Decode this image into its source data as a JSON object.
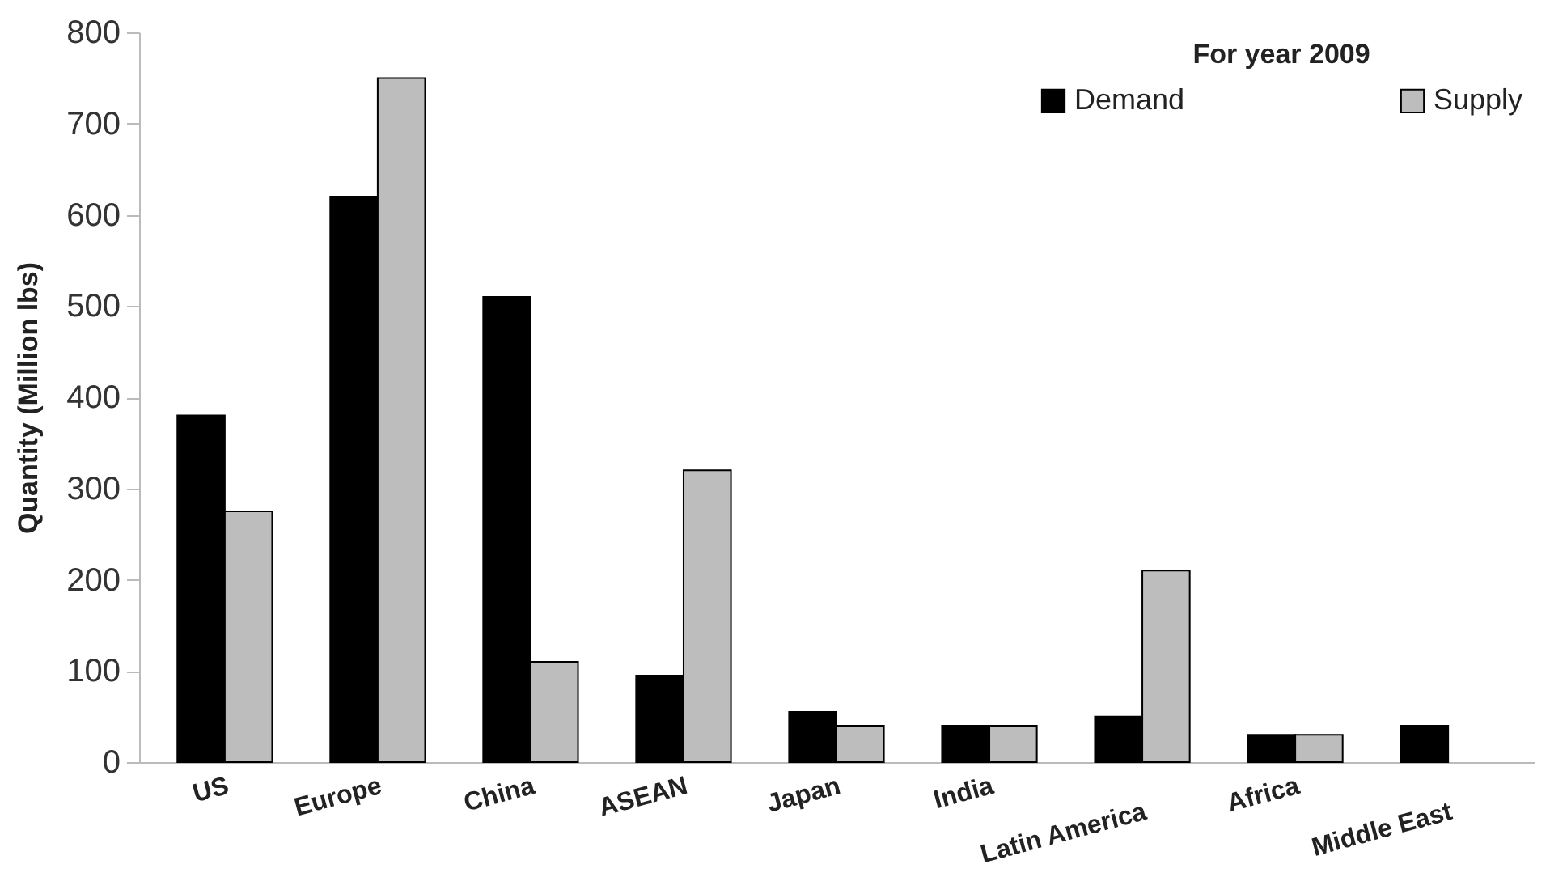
{
  "chart_data": {
    "type": "bar",
    "legend_title": "For year 2009",
    "ylabel": "Quantity  (Million lbs)",
    "categories": [
      "US",
      "Europe",
      "China",
      "ASEAN",
      "Japan",
      "India",
      "Latin America",
      "Africa",
      "Middle East"
    ],
    "series": [
      {
        "name": "Demand",
        "color": "#000000",
        "values": [
          380,
          620,
          510,
          95,
          55,
          40,
          50,
          30,
          40
        ]
      },
      {
        "name": "Supply",
        "color": "#bdbdbd",
        "values": [
          275,
          750,
          110,
          320,
          40,
          40,
          210,
          30,
          null
        ]
      }
    ],
    "ylim": [
      0,
      800
    ],
    "yticks": [
      0,
      100,
      200,
      300,
      400,
      500,
      600,
      700,
      800
    ],
    "grid": false,
    "legend": "top right"
  }
}
